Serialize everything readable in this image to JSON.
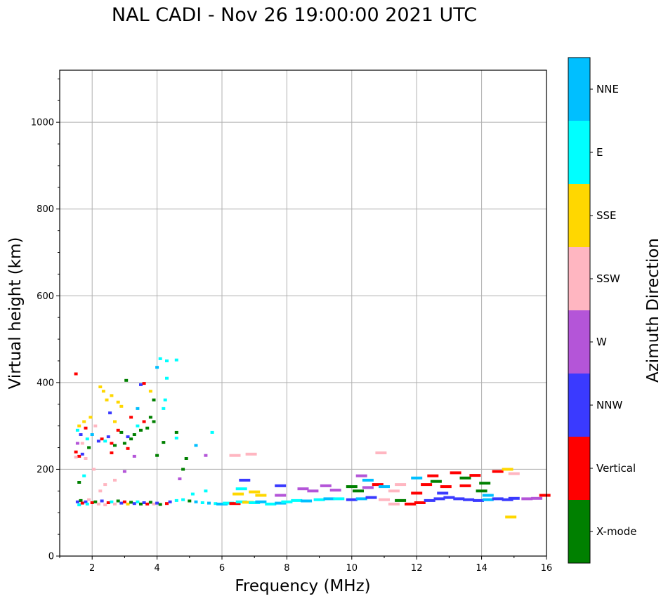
{
  "chart_data": {
    "type": "scatter",
    "title": "NAL CADI - Nov 26 19:00:00 2021 UTC",
    "xlabel": "Frequency (MHz)",
    "ylabel": "Virtual height (km)",
    "xlim": [
      1,
      16
    ],
    "ylim": [
      0,
      1120
    ],
    "xticks": [
      2,
      4,
      6,
      8,
      10,
      12,
      14,
      16
    ],
    "yticks": [
      0,
      200,
      400,
      600,
      800,
      1000
    ],
    "grid": true,
    "colorbar": {
      "label": "Azimuth Direction",
      "categories": [
        {
          "name": "X-mode",
          "color": "#008000"
        },
        {
          "name": "Vertical",
          "color": "#ff0000"
        },
        {
          "name": "NNW",
          "color": "#3a3aff"
        },
        {
          "name": "W",
          "color": "#b455d8"
        },
        {
          "name": "SSW",
          "color": "#ffb6c1"
        },
        {
          "name": "SSE",
          "color": "#ffd700"
        },
        {
          "name": "E",
          "color": "#00ffff"
        },
        {
          "name": "NNE",
          "color": "#00bfff"
        }
      ]
    },
    "points": [
      [
        1.5,
        420,
        "Vertical"
      ],
      [
        1.55,
        125,
        "NNW"
      ],
      [
        1.6,
        118,
        "E"
      ],
      [
        1.65,
        128,
        "X-mode"
      ],
      [
        1.7,
        122,
        "Vertical"
      ],
      [
        1.8,
        125,
        "NNW"
      ],
      [
        1.85,
        120,
        "E"
      ],
      [
        1.9,
        130,
        "SSW"
      ],
      [
        2.0,
        123,
        "Vertical"
      ],
      [
        2.1,
        125,
        "X-mode"
      ],
      [
        2.2,
        120,
        "SSW"
      ],
      [
        2.3,
        127,
        "NNW"
      ],
      [
        2.4,
        118,
        "SSW"
      ],
      [
        2.5,
        123,
        "Vertical"
      ],
      [
        2.6,
        125,
        "E"
      ],
      [
        2.7,
        120,
        "SSW"
      ],
      [
        2.8,
        127,
        "X-mode"
      ],
      [
        2.9,
        122,
        "NNW"
      ],
      [
        3.0,
        125,
        "Vertical"
      ],
      [
        3.1,
        120,
        "SSE"
      ],
      [
        3.2,
        124,
        "X-mode"
      ],
      [
        3.3,
        121,
        "NNW"
      ],
      [
        3.4,
        125,
        "E"
      ],
      [
        3.5,
        120,
        "X-mode"
      ],
      [
        3.6,
        123,
        "NNW"
      ],
      [
        3.7,
        120,
        "Vertical"
      ],
      [
        3.8,
        124,
        "X-mode"
      ],
      [
        3.9,
        120,
        "SSW"
      ],
      [
        4.0,
        122,
        "NNW"
      ],
      [
        4.1,
        119,
        "X-mode"
      ],
      [
        4.3,
        121,
        "Vertical"
      ],
      [
        4.4,
        125,
        "NNW"
      ],
      [
        4.6,
        128,
        "E"
      ],
      [
        4.8,
        130,
        "E"
      ],
      [
        5.0,
        127,
        "X-mode"
      ],
      [
        5.2,
        125,
        "NNE"
      ],
      [
        5.4,
        123,
        "E"
      ],
      [
        5.6,
        122,
        "NNE"
      ],
      [
        5.8,
        121,
        "E"
      ],
      [
        6.0,
        120,
        "NNE"
      ],
      [
        6.2,
        122,
        "E"
      ],
      [
        6.4,
        121,
        "Vertical"
      ],
      [
        6.6,
        125,
        "E"
      ],
      [
        6.8,
        124,
        "SSE"
      ],
      [
        7.0,
        123,
        "E"
      ],
      [
        7.2,
        125,
        "NNE"
      ],
      [
        7.5,
        120,
        "E"
      ],
      [
        7.8,
        122,
        "NNE"
      ],
      [
        8.0,
        125,
        "E"
      ],
      [
        8.3,
        128,
        "E"
      ],
      [
        8.6,
        127,
        "NNE"
      ],
      [
        9.0,
        130,
        "E"
      ],
      [
        9.3,
        132,
        "NNE"
      ],
      [
        9.6,
        132,
        "E"
      ],
      [
        10.0,
        130,
        "NNW"
      ],
      [
        10.3,
        132,
        "NNE"
      ],
      [
        10.6,
        135,
        "NNW"
      ],
      [
        11.0,
        130,
        "SSW"
      ],
      [
        11.3,
        120,
        "SSW"
      ],
      [
        11.5,
        128,
        "X-mode"
      ],
      [
        11.8,
        120,
        "Vertical"
      ],
      [
        12.1,
        123,
        "Vertical"
      ],
      [
        12.4,
        128,
        "NNW"
      ],
      [
        12.7,
        132,
        "NNW"
      ],
      [
        13.0,
        135,
        "NNW"
      ],
      [
        13.3,
        132,
        "NNW"
      ],
      [
        13.6,
        130,
        "NNW"
      ],
      [
        13.9,
        128,
        "NNW"
      ],
      [
        14.2,
        130,
        "NNE"
      ],
      [
        14.5,
        132,
        "NNW"
      ],
      [
        14.8,
        130,
        "NNW"
      ],
      [
        15.0,
        133,
        "NNW"
      ],
      [
        15.4,
        132,
        "W"
      ],
      [
        15.7,
        133,
        "W"
      ],
      [
        15.95,
        140,
        "Vertical"
      ],
      [
        8.5,
        155,
        "W"
      ],
      [
        8.8,
        150,
        "W"
      ],
      [
        9.2,
        162,
        "W"
      ],
      [
        9.5,
        152,
        "W"
      ],
      [
        10.0,
        160,
        "X-mode"
      ],
      [
        10.2,
        150,
        "X-mode"
      ],
      [
        10.5,
        158,
        "W"
      ],
      [
        10.8,
        165,
        "Vertical"
      ],
      [
        11.0,
        160,
        "NNE"
      ],
      [
        11.3,
        150,
        "SSW"
      ],
      [
        12.0,
        145,
        "Vertical"
      ],
      [
        12.3,
        165,
        "Vertical"
      ],
      [
        12.6,
        172,
        "X-mode"
      ],
      [
        12.9,
        160,
        "Vertical"
      ],
      [
        13.2,
        192,
        "Vertical"
      ],
      [
        13.5,
        180,
        "X-mode"
      ],
      [
        13.8,
        186,
        "Vertical"
      ],
      [
        14.1,
        168,
        "X-mode"
      ],
      [
        14.5,
        195,
        "Vertical"
      ],
      [
        14.8,
        200,
        "SSE"
      ],
      [
        15.0,
        190,
        "SSW"
      ],
      [
        12.0,
        180,
        "NNE"
      ],
      [
        12.5,
        185,
        "Vertical"
      ],
      [
        13.5,
        162,
        "Vertical"
      ],
      [
        14.0,
        150,
        "X-mode"
      ],
      [
        10.3,
        185,
        "W"
      ],
      [
        10.9,
        238,
        "SSW"
      ],
      [
        10.5,
        175,
        "NNE"
      ],
      [
        11.5,
        165,
        "SSW"
      ],
      [
        14.9,
        90,
        "SSE"
      ],
      [
        14.2,
        140,
        "NNE"
      ],
      [
        12.8,
        145,
        "NNW"
      ],
      [
        6.5,
        143,
        "SSE"
      ],
      [
        6.7,
        175,
        "NNW"
      ],
      [
        6.9,
        235,
        "SSW"
      ],
      [
        7.0,
        148,
        "SSE"
      ],
      [
        7.2,
        140,
        "SSE"
      ],
      [
        7.8,
        162,
        "NNW"
      ],
      [
        7.8,
        140,
        "W"
      ],
      [
        5.5,
        232,
        "W"
      ],
      [
        5.2,
        255,
        "NNE"
      ],
      [
        5.1,
        143,
        "E"
      ],
      [
        5.5,
        150,
        "E"
      ],
      [
        4.9,
        225,
        "X-mode"
      ],
      [
        4.6,
        285,
        "X-mode"
      ],
      [
        4.7,
        178,
        "W"
      ],
      [
        4.8,
        200,
        "X-mode"
      ],
      [
        5.7,
        285,
        "E"
      ],
      [
        6.4,
        232,
        "SSW"
      ],
      [
        6.6,
        155,
        "E"
      ],
      [
        4.0,
        435,
        "NNE"
      ],
      [
        4.1,
        455,
        "E"
      ],
      [
        4.3,
        450,
        "E"
      ],
      [
        4.3,
        410,
        "E"
      ],
      [
        4.6,
        452,
        "E"
      ],
      [
        4.2,
        262,
        "X-mode"
      ],
      [
        4.0,
        232,
        "X-mode"
      ],
      [
        4.2,
        340,
        "E"
      ],
      [
        4.25,
        360,
        "E"
      ],
      [
        4.6,
        272,
        "E"
      ],
      [
        1.5,
        240,
        "Vertical"
      ],
      [
        1.55,
        290,
        "E"
      ],
      [
        1.6,
        300,
        "SSE"
      ],
      [
        1.65,
        280,
        "NNW"
      ],
      [
        1.7,
        260,
        "SSW"
      ],
      [
        1.75,
        310,
        "SSE"
      ],
      [
        1.8,
        295,
        "Vertical"
      ],
      [
        1.85,
        270,
        "E"
      ],
      [
        1.9,
        250,
        "X-mode"
      ],
      [
        1.95,
        320,
        "SSE"
      ],
      [
        1.6,
        230,
        "Vertical"
      ],
      [
        1.7,
        235,
        "NNW"
      ],
      [
        1.8,
        225,
        "SSW"
      ],
      [
        1.5,
        228,
        "SSW"
      ],
      [
        1.55,
        260,
        "W"
      ],
      [
        2.0,
        280,
        "NNE"
      ],
      [
        2.1,
        300,
        "SSW"
      ],
      [
        2.2,
        265,
        "NNW"
      ],
      [
        2.3,
        270,
        "Vertical"
      ],
      [
        2.4,
        265,
        "E"
      ],
      [
        2.5,
        275,
        "NNW"
      ],
      [
        2.6,
        260,
        "Vertical"
      ],
      [
        2.7,
        255,
        "X-mode"
      ],
      [
        2.8,
        290,
        "Vertical"
      ],
      [
        2.9,
        285,
        "X-mode"
      ],
      [
        3.0,
        260,
        "X-mode"
      ],
      [
        3.1,
        275,
        "NNW"
      ],
      [
        3.2,
        270,
        "X-mode"
      ],
      [
        3.3,
        280,
        "X-mode"
      ],
      [
        3.4,
        300,
        "E"
      ],
      [
        3.5,
        290,
        "X-mode"
      ],
      [
        3.6,
        310,
        "Vertical"
      ],
      [
        3.7,
        295,
        "X-mode"
      ],
      [
        3.8,
        320,
        "X-mode"
      ],
      [
        3.9,
        310,
        "X-mode"
      ],
      [
        2.25,
        390,
        "SSE"
      ],
      [
        2.35,
        380,
        "SSE"
      ],
      [
        2.6,
        370,
        "SSE"
      ],
      [
        2.8,
        355,
        "SSE"
      ],
      [
        2.9,
        345,
        "SSE"
      ],
      [
        2.45,
        360,
        "SSE"
      ],
      [
        3.05,
        405,
        "X-mode"
      ],
      [
        3.5,
        395,
        "NNW"
      ],
      [
        3.6,
        398,
        "Vertical"
      ],
      [
        3.8,
        380,
        "SSE"
      ],
      [
        3.9,
        360,
        "X-mode"
      ],
      [
        3.4,
        340,
        "NNE"
      ],
      [
        3.2,
        320,
        "Vertical"
      ],
      [
        2.7,
        310,
        "SSE"
      ],
      [
        2.55,
        330,
        "NNW"
      ],
      [
        2.05,
        200,
        "SSW"
      ],
      [
        2.4,
        165,
        "SSW"
      ],
      [
        2.7,
        175,
        "SSW"
      ],
      [
        3.0,
        195,
        "W"
      ],
      [
        2.25,
        150,
        "SSW"
      ],
      [
        1.75,
        185,
        "E"
      ],
      [
        1.6,
        170,
        "X-mode"
      ],
      [
        3.3,
        230,
        "W"
      ],
      [
        3.1,
        248,
        "Vertical"
      ],
      [
        2.6,
        238,
        "Vertical"
      ]
    ]
  }
}
